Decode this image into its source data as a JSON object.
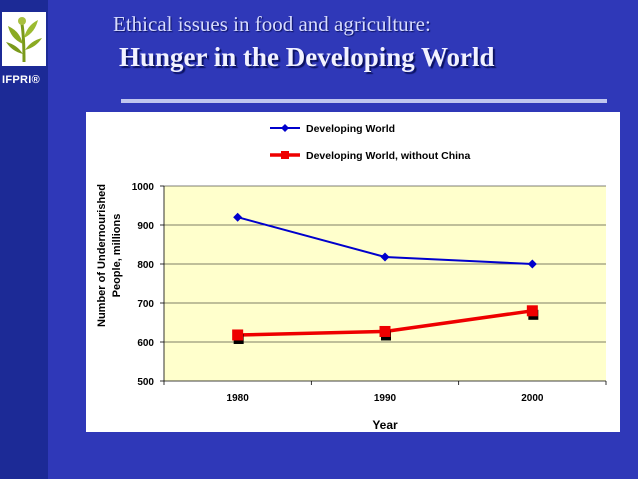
{
  "slide": {
    "title_line1": "Ethical issues in food and agriculture:",
    "title_line2": "Hunger in the Developing World",
    "logo_text": "IFPRI®"
  },
  "colors": {
    "background": "#2f38b8",
    "plot_area": "#ffffcc",
    "series1": "#0000cc",
    "series2": "#ee0000"
  },
  "chart_data": {
    "type": "line",
    "title": "",
    "categories": [
      "1980",
      "1990",
      "2000"
    ],
    "series": [
      {
        "name": "Developing World",
        "values": [
          920,
          818,
          800
        ],
        "color": "#0000cc",
        "marker": "diamond"
      },
      {
        "name": "Developing World, without China",
        "values": [
          618,
          627,
          680
        ],
        "color": "#ee0000",
        "marker": "square"
      }
    ],
    "xlabel": "Year",
    "ylabel_line1": "Number of Undernourished",
    "ylabel_line2": "People, millions",
    "ylim": [
      500,
      1000
    ],
    "yticks": [
      "500",
      "600",
      "700",
      "800",
      "900",
      "1000"
    ],
    "grid": true,
    "legend_position": "top"
  }
}
